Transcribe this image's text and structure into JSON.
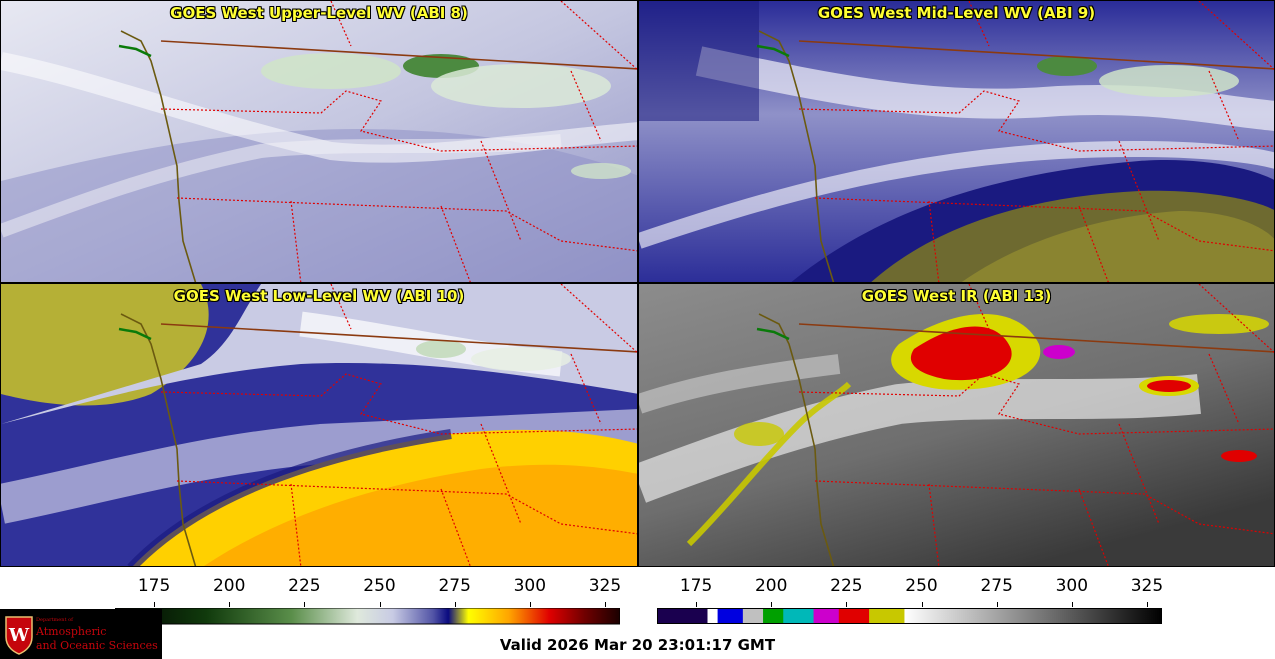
{
  "panels": [
    {
      "title": "GOES West Upper-Level WV (ABI 8)",
      "palette": "wv_upper"
    },
    {
      "title": "GOES West Mid-Level WV (ABI 9)",
      "palette": "wv_mid"
    },
    {
      "title": "GOES West Low-Level WV (ABI 10)",
      "palette": "wv_low"
    },
    {
      "title": "GOES West IR (ABI 13)",
      "palette": "ir"
    }
  ],
  "colorbar_wv": {
    "ticks": [
      "175",
      "200",
      "225",
      "250",
      "275",
      "300",
      "325"
    ],
    "range": [
      162,
      330
    ],
    "stops": [
      [
        0.0,
        "#000000"
      ],
      [
        0.18,
        "#103a0c"
      ],
      [
        0.35,
        "#5a8e4a"
      ],
      [
        0.48,
        "#dfe9dc"
      ],
      [
        0.55,
        "#c8cbe4"
      ],
      [
        0.63,
        "#5254a6"
      ],
      [
        0.66,
        "#0a0a80"
      ],
      [
        0.7,
        "#ffff00"
      ],
      [
        0.78,
        "#ffa500"
      ],
      [
        0.86,
        "#e00000"
      ],
      [
        0.93,
        "#700000"
      ],
      [
        1.0,
        "#1a0000"
      ]
    ]
  },
  "colorbar_ir": {
    "ticks": [
      "175",
      "200",
      "225",
      "250",
      "275",
      "300",
      "325"
    ],
    "range": [
      162,
      330
    ],
    "segments": [
      [
        0.0,
        0.1,
        "#1a004f"
      ],
      [
        0.1,
        0.12,
        "#ffffff"
      ],
      [
        0.12,
        0.17,
        "#0000e0"
      ],
      [
        0.17,
        0.21,
        "#c0c0c0"
      ],
      [
        0.21,
        0.25,
        "#00a000"
      ],
      [
        0.25,
        0.31,
        "#00b8b8"
      ],
      [
        0.31,
        0.36,
        "#cc00cc"
      ],
      [
        0.36,
        0.42,
        "#e00000"
      ],
      [
        0.42,
        0.49,
        "#c8c800"
      ]
    ],
    "gray_from": 0.49
  },
  "valid_text": "Valid 2026 Mar 20 23:01:17 GMT",
  "logo": {
    "line1": "Department of",
    "line2": "Atmospheric",
    "line3": "and Oceanic Sciences",
    "seal_letter": "W"
  }
}
